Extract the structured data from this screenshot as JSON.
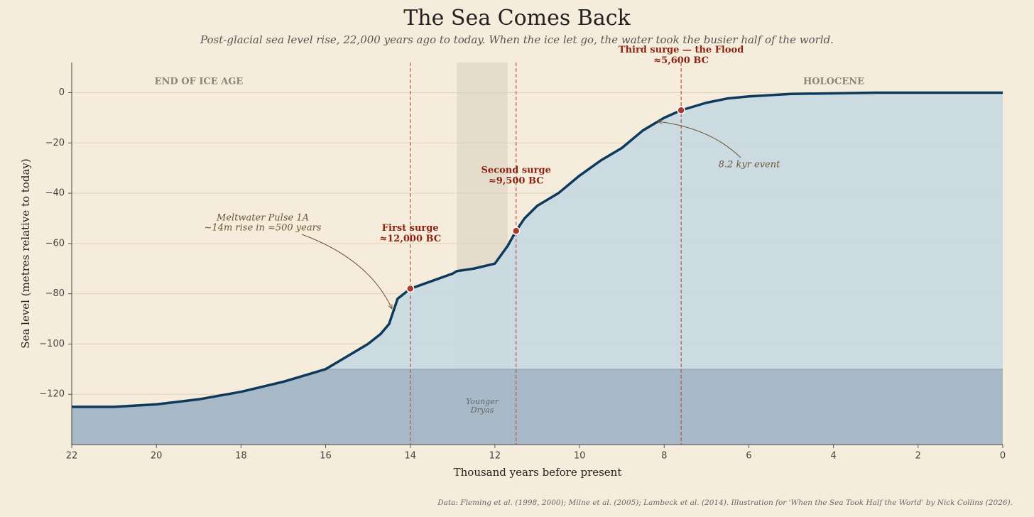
{
  "chart_data": {
    "type": "line",
    "title": "The Sea Comes Back",
    "subtitle": "Post-glacial sea level rise, 22,000 years ago to today. When the ice let go, the water took the busier half of the world.",
    "x_label": "Thousand years before present",
    "y_label": "Sea level (metres relative to today)",
    "source": "Data: Fleming et al. (1998, 2000); Milne et al. (2005); Lambeck et al. (2014).  Illustration for 'When the Sea Took Half the World' by Nick Collins (2026).",
    "x": [
      22,
      21,
      20,
      19,
      18,
      17,
      16,
      15,
      14.7,
      14.5,
      14.3,
      14,
      13.5,
      13,
      12.9,
      12.5,
      12,
      11.7,
      11.5,
      11.3,
      11,
      10.5,
      10,
      9.5,
      9,
      8.5,
      8,
      7.6,
      7,
      6.5,
      6,
      5,
      3,
      0
    ],
    "values": [
      -125,
      -125,
      -124,
      -122,
      -119,
      -115,
      -110,
      -100,
      -96,
      -92,
      -82,
      -78,
      -75,
      -72,
      -71,
      -70,
      -68,
      -61,
      -55,
      -50,
      -45,
      -40,
      -33,
      -27,
      -22,
      -15,
      -10,
      -7,
      -4,
      -2.3,
      -1.5,
      -0.5,
      0,
      0
    ],
    "color": "#0d3a5c",
    "fill_color": "#c9d9e2",
    "shelf_level": -110,
    "shelf_color": "#a3b4c4",
    "xlim": [
      22,
      0
    ],
    "ylim": [
      -140,
      12
    ],
    "xticks": [
      22,
      20,
      18,
      16,
      14,
      12,
      10,
      8,
      6,
      4,
      2,
      0
    ],
    "yticks": [
      {
        "value": 0,
        "label": "0"
      },
      {
        "value": -20,
        "label": "−20"
      },
      {
        "value": -40,
        "label": "−40"
      },
      {
        "value": -60,
        "label": "−60"
      },
      {
        "value": -80,
        "label": "−80"
      },
      {
        "value": -100,
        "label": "−100"
      },
      {
        "value": -120,
        "label": "−120"
      }
    ],
    "grid": true,
    "shaded_period": {
      "label_lines": [
        "Younger",
        "Dryas"
      ],
      "range": [
        12.9,
        11.7
      ]
    },
    "eras": [
      "END OF ICE AGE",
      "HOLOCENE"
    ],
    "events": [
      {
        "x": 14,
        "y": -78,
        "label": "First surge",
        "date": "≈12,000 BC"
      },
      {
        "x": 11.5,
        "y": -55,
        "label": "Second surge",
        "date": "≈9,500 BC"
      },
      {
        "x": 7.6,
        "y": -7,
        "label": "Third surge — the Flood",
        "date": "≈5,600 BC"
      }
    ],
    "annotations": [
      {
        "lines": [
          "Meltwater Pulse 1A",
          "~14m rise in ≈500 years"
        ]
      },
      {
        "lines": [
          "8.2 kyr event"
        ]
      }
    ]
  }
}
